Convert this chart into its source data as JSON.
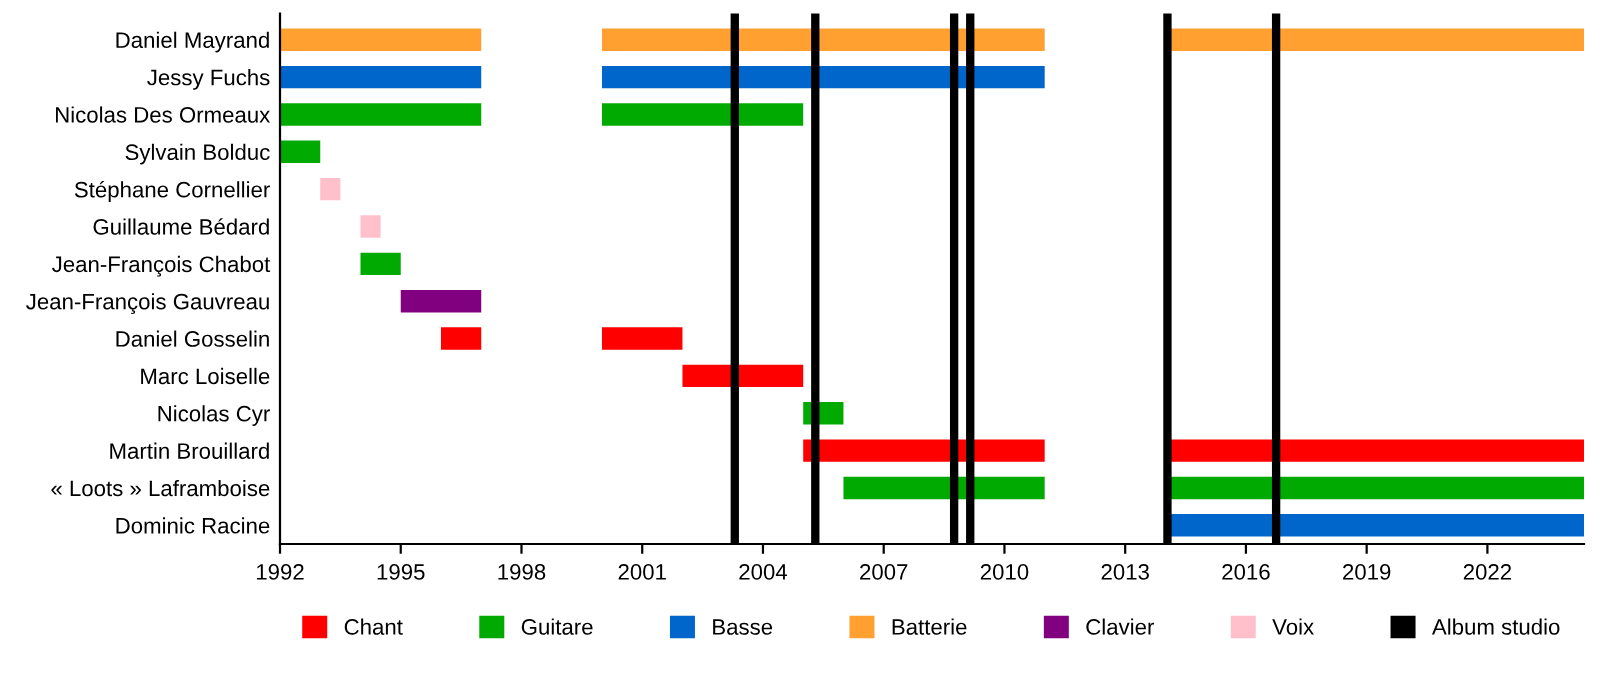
{
  "chart_data": {
    "type": "bar",
    "orientation": "horizontal",
    "categories": [
      "Daniel Mayrand",
      "Jessy Fuchs",
      "Nicolas Des Ormeaux",
      "Sylvain Bolduc",
      "Stéphane Cornellier",
      "Guillaume Bédard",
      "Jean-François Chabot",
      "Jean-François Gauvreau",
      "Daniel Gosselin",
      "Marc Loiselle",
      "Nicolas Cyr",
      "Martin Brouillard",
      "« Loots » Laframboise",
      "Dominic Racine"
    ],
    "series": [
      {
        "name": "Chant",
        "color": "#ff0000",
        "base": [
          null,
          null,
          null,
          null,
          null,
          null,
          null,
          null,
          1996,
          2002,
          null,
          2005,
          null,
          null
        ],
        "values": [
          null,
          null,
          null,
          null,
          null,
          null,
          null,
          null,
          1,
          3,
          null,
          6,
          null,
          null
        ]
      },
      {
        "color": "#ff0000",
        "base": [
          null,
          null,
          null,
          null,
          null,
          null,
          null,
          null,
          2000,
          null,
          null,
          2014,
          null,
          null
        ],
        "values": [
          null,
          null,
          null,
          null,
          null,
          null,
          null,
          null,
          2,
          null,
          null,
          10.4,
          null,
          null
        ]
      },
      {
        "name": "Guitare",
        "color": "#00aa00",
        "base": [
          null,
          null,
          1992,
          1992,
          null,
          null,
          1994,
          null,
          null,
          null,
          2005,
          null,
          2006,
          null
        ],
        "values": [
          null,
          null,
          5,
          1,
          null,
          null,
          1,
          null,
          null,
          null,
          1,
          null,
          5,
          null
        ]
      },
      {
        "color": "#00aa00",
        "base": [
          null,
          null,
          2000,
          null,
          null,
          null,
          null,
          null,
          null,
          null,
          null,
          null,
          2014,
          null
        ],
        "values": [
          null,
          null,
          5,
          null,
          null,
          null,
          null,
          null,
          null,
          null,
          null,
          null,
          10.4,
          null
        ]
      },
      {
        "name": "Basse",
        "color": "#0066cc",
        "base": [
          null,
          1992,
          null,
          null,
          null,
          null,
          null,
          null,
          null,
          null,
          null,
          null,
          null,
          2014
        ],
        "values": [
          null,
          5,
          null,
          null,
          null,
          null,
          null,
          null,
          null,
          null,
          null,
          null,
          null,
          10.4
        ]
      },
      {
        "color": "#0066cc",
        "base": [
          null,
          2000,
          null,
          null,
          null,
          null,
          null,
          null,
          null,
          null,
          null,
          null,
          null,
          null
        ],
        "values": [
          null,
          11,
          null,
          null,
          null,
          null,
          null,
          null,
          null,
          null,
          null,
          null,
          null,
          null
        ]
      },
      {
        "name": "Batterie",
        "color": "#ffa030",
        "base": [
          1992,
          null,
          null,
          null,
          null,
          null,
          null,
          null,
          null,
          null,
          null,
          null,
          null,
          null
        ],
        "values": [
          5,
          null,
          null,
          null,
          null,
          null,
          null,
          null,
          null,
          null,
          null,
          null,
          null,
          null
        ]
      },
      {
        "color": "#ffa030",
        "base": [
          2000,
          null,
          null,
          null,
          null,
          null,
          null,
          null,
          null,
          null,
          null,
          null,
          null,
          null
        ],
        "values": [
          11,
          null,
          null,
          null,
          null,
          null,
          null,
          null,
          null,
          null,
          null,
          null,
          null,
          null
        ]
      },
      {
        "color": "#ffa030",
        "base": [
          2014,
          null,
          null,
          null,
          null,
          null,
          null,
          null,
          null,
          null,
          null,
          null,
          null,
          null
        ],
        "values": [
          10.4,
          null,
          null,
          null,
          null,
          null,
          null,
          null,
          null,
          null,
          null,
          null,
          null,
          null
        ]
      },
      {
        "name": "Clavier",
        "color": "#800080",
        "base": [
          null,
          null,
          null,
          null,
          null,
          null,
          null,
          1995,
          null,
          null,
          null,
          null,
          null,
          null
        ],
        "values": [
          null,
          null,
          null,
          null,
          null,
          null,
          null,
          2,
          null,
          null,
          null,
          null,
          null,
          null
        ]
      },
      {
        "name": "Voix",
        "color": "#ffc0cb",
        "base": [
          null,
          null,
          null,
          null,
          1993,
          1994,
          null,
          null,
          null,
          null,
          null,
          null,
          null,
          null
        ],
        "values": [
          null,
          null,
          null,
          null,
          0.5,
          0.5,
          null,
          null,
          null,
          null,
          null,
          null,
          null,
          null
        ]
      }
    ],
    "ref_lines": [
      {
        "axis": "x",
        "value": 2003.3,
        "label": "Album studio",
        "color": "#000000"
      },
      {
        "axis": "x",
        "value": 2005.3,
        "color": "#000000"
      },
      {
        "axis": "x",
        "value": 2008.75,
        "color": "#000000"
      },
      {
        "axis": "x",
        "value": 2009.15,
        "color": "#000000"
      },
      {
        "axis": "x",
        "value": 2014.05,
        "color": "#000000"
      },
      {
        "axis": "x",
        "value": 2016.75,
        "color": "#000000"
      }
    ],
    "xlim": [
      1992,
      2024.4
    ],
    "xticks": [
      1992,
      1995,
      1998,
      2001,
      2004,
      2007,
      2010,
      2013,
      2016,
      2019,
      2022
    ],
    "grid": false,
    "legend": "bottom"
  }
}
